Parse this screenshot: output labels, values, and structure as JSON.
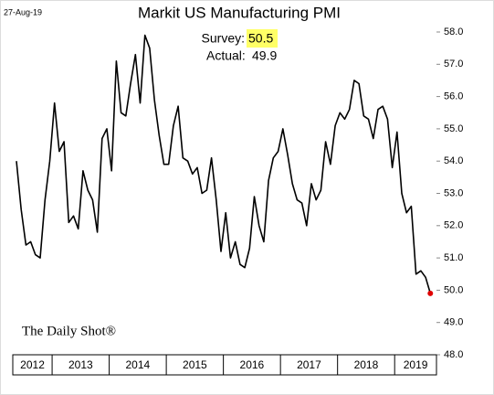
{
  "chart_data": {
    "type": "line",
    "title": "Markit US Manufacturing PMI",
    "date": "27-Aug-19",
    "source": "The Daily Shot®",
    "annotation": {
      "survey_label": "Survey:",
      "survey_value": 50.5,
      "actual_label": "Actual:",
      "actual_value": 49.9
    },
    "years": [
      "2012",
      "2013",
      "2014",
      "2015",
      "2016",
      "2017",
      "2018",
      "2019"
    ],
    "color": "#000000",
    "last_point_color": "#e00000",
    "highlight_color": "#ffff66",
    "values": [
      54.0,
      52.5,
      51.4,
      51.5,
      51.1,
      51.0,
      52.8,
      54.0,
      55.8,
      54.3,
      54.6,
      52.1,
      52.3,
      51.9,
      53.7,
      53.1,
      52.8,
      51.8,
      54.7,
      55.0,
      53.7,
      57.1,
      55.5,
      55.4,
      56.4,
      57.3,
      55.8,
      57.9,
      57.5,
      55.9,
      54.8,
      53.9,
      53.9,
      55.1,
      55.7,
      54.1,
      54.0,
      53.6,
      53.8,
      53.0,
      53.1,
      54.1,
      52.8,
      51.2,
      52.4,
      51.0,
      51.5,
      50.8,
      50.7,
      51.3,
      52.9,
      52.0,
      51.5,
      53.4,
      54.1,
      54.3,
      55.0,
      54.2,
      53.3,
      52.8,
      52.7,
      52.0,
      53.3,
      52.8,
      53.1,
      54.6,
      53.9,
      55.1,
      55.5,
      55.3,
      55.6,
      56.5,
      56.4,
      55.4,
      55.3,
      54.7,
      55.6,
      55.7,
      55.3,
      53.8,
      54.9,
      53.0,
      52.4,
      52.6,
      50.5,
      50.6,
      50.4,
      49.9
    ],
    "ylim": [
      48,
      58
    ],
    "yticks": [
      {
        "value": 48,
        "label": "48.0"
      },
      {
        "value": 49,
        "label": "49.0"
      },
      {
        "value": 50,
        "label": "50.0"
      },
      {
        "value": 51,
        "label": "51.0"
      },
      {
        "value": 52,
        "label": "52.0"
      },
      {
        "value": 53,
        "label": "53.0"
      },
      {
        "value": 54,
        "label": "54.0"
      },
      {
        "value": 55,
        "label": "55.0"
      },
      {
        "value": 56,
        "label": "56.0"
      },
      {
        "value": 57,
        "label": "57.0"
      },
      {
        "value": 58,
        "label": "58.0"
      }
    ]
  }
}
